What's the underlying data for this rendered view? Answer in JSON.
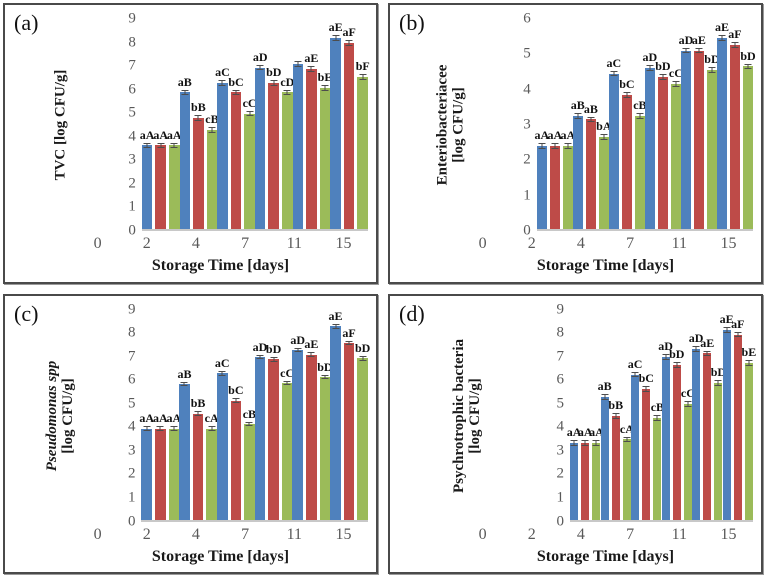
{
  "figure": {
    "background": "#ffffff",
    "panel_border_color": "#4a4a4a",
    "axis_tick_color": "#595959",
    "baseline_color": "#c8c8c8"
  },
  "chart_data": [
    {
      "type": "bar",
      "panel_label": "(a)",
      "ylabel_lines": [
        "TVC [log CFU/g]"
      ],
      "ylabel_italic": false,
      "xlabel": "Storage Time [days]",
      "ylim": [
        0,
        9
      ],
      "ytick_step": 1,
      "grid": false,
      "legend": "none",
      "error_bar": 0.12,
      "categories": [
        "0",
        "2",
        "4",
        "7",
        "11",
        "15"
      ],
      "series": [
        {
          "name": "blue",
          "color": "#4F81BD",
          "values": [
            3.55,
            5.8,
            6.2,
            6.85,
            7.0,
            8.1
          ],
          "labels": [
            "aA",
            "aB",
            "aC",
            "aD",
            "",
            "aE"
          ]
        },
        {
          "name": "red",
          "color": "#BE4B48",
          "values": [
            3.55,
            4.7,
            5.8,
            6.2,
            6.8,
            7.9
          ],
          "labels": [
            "aA",
            "bB",
            "bC",
            "bD",
            "aE",
            "aF"
          ]
        },
        {
          "name": "green",
          "color": "#9BBB59",
          "values": [
            3.55,
            4.2,
            4.9,
            5.8,
            6.0,
            6.45
          ],
          "labels": [
            "aA",
            "cB",
            "cC",
            "cD",
            "bE",
            "bF"
          ]
        }
      ]
    },
    {
      "type": "bar",
      "panel_label": "(b)",
      "ylabel_lines": [
        "Enteriobacteriacee",
        "[log CFU/g]"
      ],
      "ylabel_italic": false,
      "xlabel": "Storage Time [days]",
      "ylim": [
        0,
        6
      ],
      "ytick_step": 1,
      "grid": false,
      "legend": "none",
      "error_bar": 0.08,
      "categories": [
        "0",
        "2",
        "4",
        "7",
        "11",
        "15"
      ],
      "series": [
        {
          "name": "blue",
          "color": "#4F81BD",
          "values": [
            2.35,
            3.2,
            4.4,
            4.55,
            5.05,
            5.4
          ],
          "labels": [
            "aA",
            "aB",
            "aC",
            "aD",
            "aD",
            "aE"
          ]
        },
        {
          "name": "red",
          "color": "#BE4B48",
          "values": [
            2.35,
            3.1,
            3.8,
            4.3,
            5.05,
            5.2
          ],
          "labels": [
            "aA",
            "aB",
            "bC",
            "bD",
            "aE",
            "aF"
          ]
        },
        {
          "name": "green",
          "color": "#9BBB59",
          "values": [
            2.35,
            2.6,
            3.2,
            4.1,
            4.5,
            4.6
          ],
          "labels": [
            "aA",
            "bA",
            "cB",
            "cC",
            "bD",
            "bD"
          ]
        }
      ]
    },
    {
      "type": "bar",
      "panel_label": "(c)",
      "ylabel_lines": [
        "Pseudomonas spp",
        "[log CFU/g]"
      ],
      "ylabel_italic": true,
      "xlabel": "Storage Time [days]",
      "ylim": [
        0,
        9
      ],
      "ytick_step": 1,
      "grid": false,
      "legend": "none",
      "error_bar": 0.1,
      "categories": [
        "0",
        "2",
        "4",
        "7",
        "11",
        "15"
      ],
      "series": [
        {
          "name": "blue",
          "color": "#4F81BD",
          "values": [
            3.85,
            5.75,
            6.2,
            6.9,
            7.2,
            8.2
          ],
          "labels": [
            "aA",
            "aB",
            "aC",
            "aD",
            "aD",
            "aE"
          ]
        },
        {
          "name": "red",
          "color": "#BE4B48",
          "values": [
            3.85,
            4.5,
            5.05,
            6.8,
            7.0,
            7.5
          ],
          "labels": [
            "aA",
            "bB",
            "bC",
            "bD",
            "aE",
            "aF"
          ]
        },
        {
          "name": "green",
          "color": "#9BBB59",
          "values": [
            3.85,
            3.85,
            4.05,
            5.8,
            6.05,
            6.85
          ],
          "labels": [
            "aA",
            "cA",
            "cB",
            "cC",
            "bD",
            "bD"
          ]
        }
      ]
    },
    {
      "type": "bar",
      "panel_label": "(d)",
      "ylabel_lines": [
        "Psychrotrophic bacteria",
        "[log CFU/g]"
      ],
      "ylabel_italic": false,
      "xlabel": "Storage Time [days]",
      "ylim": [
        0,
        9
      ],
      "ytick_step": 1,
      "grid": false,
      "legend": "none",
      "error_bar": 0.12,
      "categories": [
        "0",
        "2",
        "4",
        "7",
        "11",
        "15"
      ],
      "series": [
        {
          "name": "blue",
          "color": "#4F81BD",
          "values": [
            3.25,
            5.2,
            6.15,
            6.9,
            7.25,
            8.05
          ],
          "labels": [
            "aA",
            "aB",
            "aC",
            "aD",
            "aD",
            "aE"
          ]
        },
        {
          "name": "red",
          "color": "#BE4B48",
          "values": [
            3.25,
            4.4,
            5.55,
            6.55,
            7.05,
            7.85
          ],
          "labels": [
            "aA",
            "bB",
            "bC",
            "bD",
            "aE",
            "aF"
          ]
        },
        {
          "name": "green",
          "color": "#9BBB59",
          "values": [
            3.25,
            3.4,
            4.3,
            4.9,
            5.8,
            6.65
          ],
          "labels": [
            "aA",
            "cA",
            "cB",
            "cC",
            "bD",
            "bE"
          ]
        }
      ]
    }
  ]
}
